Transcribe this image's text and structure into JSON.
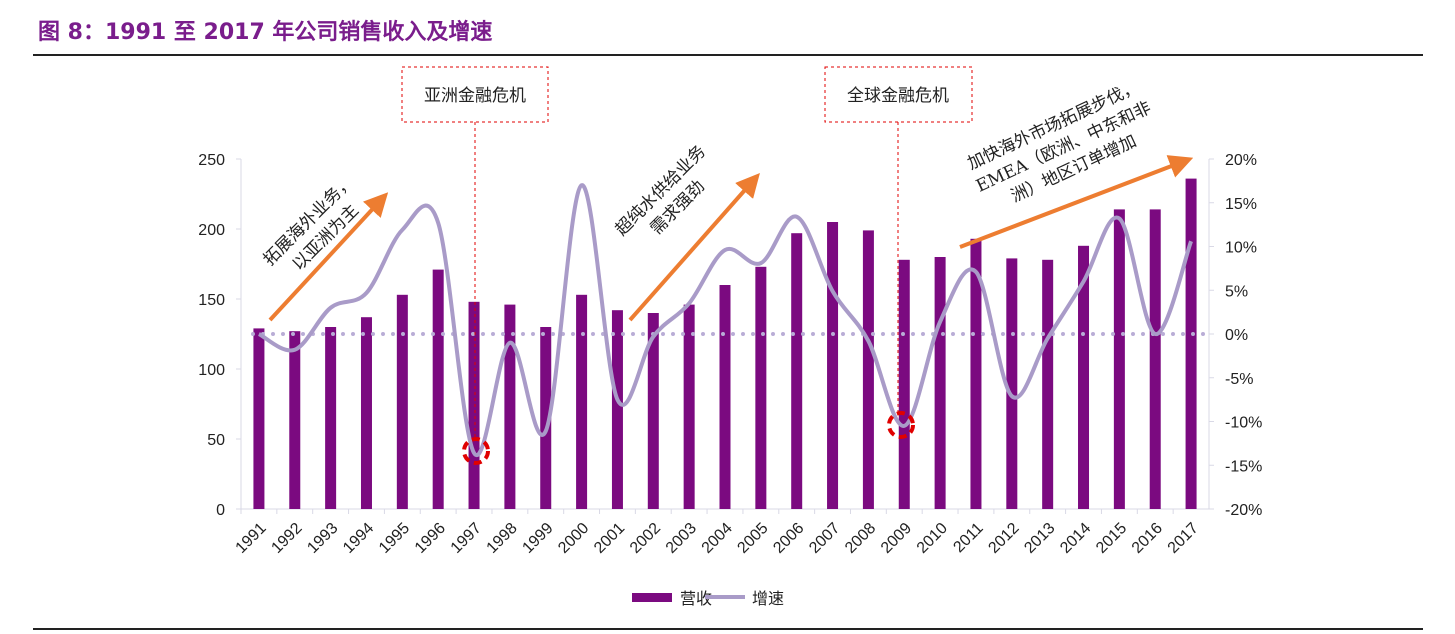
{
  "title": "图 8：1991 至 2017 年公司销售收入及增速",
  "chart_data": {
    "type": "bar+line",
    "categories": [
      "1991",
      "1992",
      "1993",
      "1994",
      "1995",
      "1996",
      "1997",
      "1998",
      "1999",
      "2000",
      "2001",
      "2002",
      "2003",
      "2004",
      "2005",
      "2006",
      "2007",
      "2008",
      "2009",
      "2010",
      "2011",
      "2012",
      "2013",
      "2014",
      "2015",
      "2016",
      "2017"
    ],
    "series": [
      {
        "name": "营收",
        "type": "bar",
        "axis": "left",
        "color": "#7b0a80",
        "values": [
          129,
          127,
          130,
          137,
          153,
          171,
          148,
          146,
          130,
          153,
          142,
          140,
          146,
          160,
          173,
          197,
          205,
          199,
          178,
          180,
          193,
          179,
          178,
          188,
          214,
          214,
          236
        ]
      },
      {
        "name": "增速",
        "type": "line",
        "axis": "right",
        "color": "#a99bc8",
        "unit": "%",
        "values": [
          0,
          -1.8,
          3,
          4.7,
          11.9,
          12.7,
          -13.6,
          -1,
          -11.1,
          17,
          -7.5,
          -0.3,
          3.5,
          9.6,
          8.1,
          13.4,
          4.9,
          -0.8,
          -10.5,
          1.4,
          7.1,
          -7.1,
          -0.5,
          6,
          13.2,
          0,
          10.6
        ]
      }
    ],
    "y_left": {
      "range": [
        0,
        250
      ],
      "ticks": [
        "0",
        "50",
        "100",
        "150",
        "200",
        "250"
      ]
    },
    "y_right": {
      "range": [
        -20,
        20
      ],
      "ticks": [
        "-20%",
        "-15%",
        "-10%",
        "-5%",
        "0%",
        "5%",
        "10%",
        "15%",
        "20%"
      ]
    },
    "reference_line": {
      "value_percent": 0,
      "style": "dotted"
    },
    "legend": {
      "position": "bottom",
      "items": [
        "营收",
        "增速"
      ]
    },
    "annotations": {
      "asian_crisis": {
        "label": "亚洲金融危机",
        "year": "1997"
      },
      "global_crisis": {
        "label": "全球金融危机",
        "year": "2009"
      },
      "phase1": [
        "拓展海外业务，",
        "以亚洲为主"
      ],
      "phase2": [
        "超纯水供给业务",
        "需求强劲"
      ],
      "phase3": [
        "加快海外市场拓展步伐，",
        "EMEA（欧洲、中东和非",
        "洲）地区订单增加"
      ]
    },
    "colors": {
      "title": "#7a1d8c",
      "arrow": "#ed7d31",
      "crisis": "#e00000"
    }
  }
}
